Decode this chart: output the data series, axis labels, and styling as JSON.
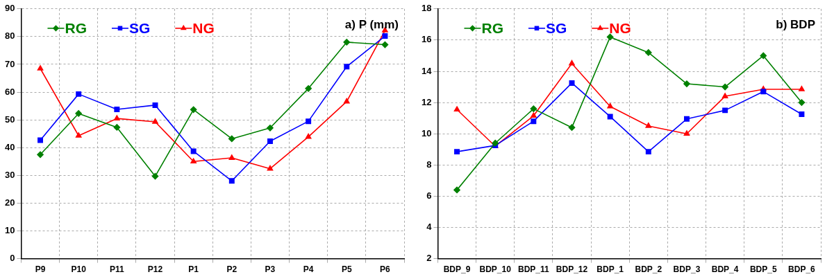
{
  "chart_data": [
    {
      "type": "line",
      "title": "a) P (mm)",
      "categories": [
        "P9",
        "P10",
        "P11",
        "P12",
        "P1",
        "P2",
        "P3",
        "P4",
        "P5",
        "P6"
      ],
      "series": [
        {
          "name": "RG",
          "color": "#008000",
          "marker": "diamond",
          "values": [
            37.5,
            52.3,
            47.3,
            29.7,
            53.7,
            43.2,
            47.1,
            61.3,
            78,
            77.1
          ]
        },
        {
          "name": "SG",
          "color": "#0000ff",
          "marker": "square",
          "values": [
            42.7,
            59.3,
            53.8,
            55.3,
            38.7,
            28,
            42.3,
            49.5,
            69.2,
            80.2
          ]
        },
        {
          "name": "NG",
          "color": "#ff0000",
          "marker": "triangle",
          "values": [
            68.5,
            44.3,
            50.5,
            49.3,
            35,
            36.3,
            32.4,
            43.9,
            56.6,
            82.2
          ]
        }
      ],
      "ylim": [
        0,
        90
      ],
      "yticks": [
        0,
        10,
        20,
        30,
        40,
        50,
        60,
        70,
        80,
        90
      ],
      "grid": true,
      "legend": "top left"
    },
    {
      "type": "line",
      "title": "b) BDP",
      "categories": [
        "BDP_9",
        "BDP_10",
        "BDP_11",
        "BDP_12",
        "BDP_1",
        "BDP_2",
        "BDP_3",
        "BDP_4",
        "BDP_5",
        "BDP_6"
      ],
      "series": [
        {
          "name": "RG",
          "color": "#008000",
          "marker": "diamond",
          "values": [
            6.4,
            9.4,
            11.6,
            10.4,
            16.2,
            15.2,
            13.2,
            13,
            15,
            12
          ]
        },
        {
          "name": "SG",
          "color": "#0000ff",
          "marker": "square",
          "values": [
            8.85,
            9.25,
            10.8,
            13.25,
            11.1,
            8.85,
            10.95,
            11.5,
            12.7,
            11.25
          ]
        },
        {
          "name": "NG",
          "color": "#ff0000",
          "marker": "triangle",
          "values": [
            11.55,
            9.2,
            11.15,
            14.5,
            11.75,
            10.5,
            10,
            12.4,
            12.85,
            12.85
          ]
        }
      ],
      "ylim": [
        2,
        18
      ],
      "yticks": [
        2,
        4,
        6,
        8,
        10,
        12,
        14,
        16,
        18
      ],
      "grid": true,
      "legend": "top left"
    }
  ]
}
